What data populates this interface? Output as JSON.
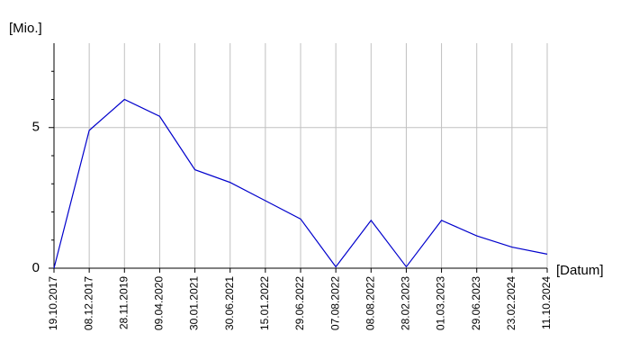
{
  "chart_data": {
    "type": "line",
    "y_label": "[Mio.]",
    "x_label": "[Datum]",
    "categories": [
      "19.10.2017",
      "08.12.2017",
      "28.11.2019",
      "09.04.2020",
      "30.01.2021",
      "30.06.2021",
      "15.01.2022",
      "29.06.2022",
      "07.08.2022",
      "08.08.2022",
      "28.02.2023",
      "01.03.2023",
      "29.06.2023",
      "23.02.2024",
      "11.10.2024"
    ],
    "series": [
      {
        "color": "#0000cc",
        "values": [
          0,
          4.9,
          6.0,
          5.4,
          3.5,
          3.05,
          2.4,
          1.75,
          0.05,
          1.7,
          0.05,
          1.7,
          1.15,
          0.75,
          0.5
        ]
      }
    ],
    "ylim": [
      0,
      8
    ],
    "yticks": [
      0,
      5
    ],
    "yminorticks": [
      1,
      2,
      3,
      4,
      6,
      7
    ],
    "grid": true
  }
}
